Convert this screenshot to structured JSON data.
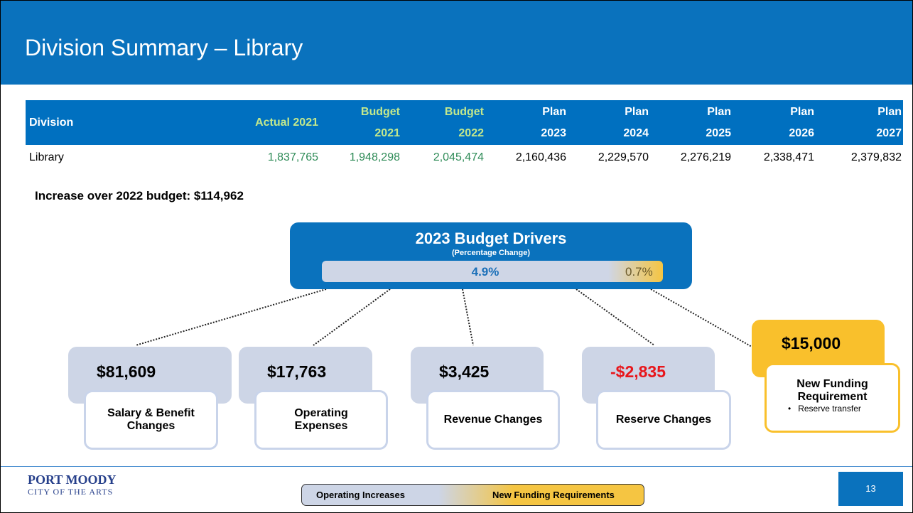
{
  "header": {
    "title": "Division Summary – Library"
  },
  "table": {
    "columns": [
      "Division",
      "Actual 2021",
      "Budget 2021",
      "Budget 2022",
      "Plan 2023",
      "Plan 2024",
      "Plan 2025",
      "Plan 2026",
      "Plan 2027"
    ],
    "rows": [
      [
        "Library",
        "1,837,765",
        "1,948,298",
        "2,045,474",
        "2,160,436",
        "2,229,570",
        "2,276,219",
        "2,338,471",
        "2,379,832"
      ]
    ]
  },
  "increase": "Increase over 2022 budget: $114,962",
  "drivers": {
    "title": "2023 Budget Drivers",
    "subtitle": "(Percentage Change)",
    "operating_pct": "4.9%",
    "new_pct": "0.7%"
  },
  "cards": [
    {
      "amount": "$81,609",
      "label": "Salary & Benefit Changes"
    },
    {
      "amount": "$17,763",
      "label": "Operating Expenses"
    },
    {
      "amount": "$3,425",
      "label": "Revenue Changes"
    },
    {
      "amount": "-$2,835",
      "label": "Reserve Changes"
    },
    {
      "amount": "$15,000",
      "label": "New Funding Requirement",
      "bullets": [
        "Reserve transfer"
      ]
    }
  ],
  "footer": {
    "logo_name": "PORT MOODY",
    "logo_tag": "CITY OF THE ARTS",
    "legend": [
      "Operating Increases",
      "New Funding Requirements"
    ],
    "page": "13"
  }
}
